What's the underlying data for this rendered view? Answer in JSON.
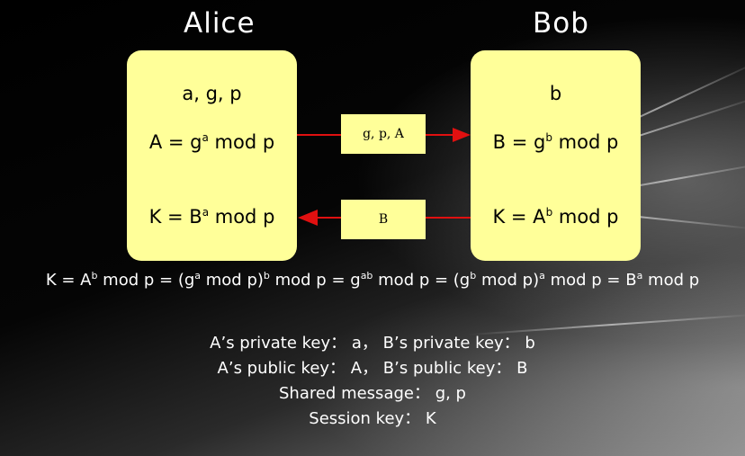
{
  "alice": {
    "name": "Alice",
    "line1": "a, g, p",
    "line2_pre": "A = g",
    "line2_sup": "a",
    "line2_post": " mod p",
    "line3_pre": "K = B",
    "line3_sup": "a",
    "line3_post": " mod p"
  },
  "bob": {
    "name": "Bob",
    "line1": "b",
    "line2_pre": "B = g",
    "line2_sup": "b",
    "line2_post": " mod p",
    "line3_pre": "K = A",
    "line3_sup": "b",
    "line3_post": " mod p"
  },
  "messages": {
    "to_bob": "g, p, A",
    "to_alice": "B"
  },
  "formula": {
    "p1": "K  =  A",
    "s1": "b",
    "p2": " mod p  =  (g",
    "s2": "a",
    "p3": " mod p)",
    "s3": "b",
    "p4": " mod p  =  g",
    "s4": "ab",
    "p5": " mod p  =  (g",
    "s5": "b",
    "p6": " mod p)",
    "s6": "a",
    "p7": " mod p  =  B",
    "s7": "a",
    "p8": " mod p"
  },
  "info": [
    "A’s private key： a， B’s private key： b",
    "A’s public key： A， B’s public key： B",
    "Shared message： g, p",
    "Session key： K"
  ],
  "colors": {
    "box": "#ffff99",
    "arrow": "#e01010"
  }
}
